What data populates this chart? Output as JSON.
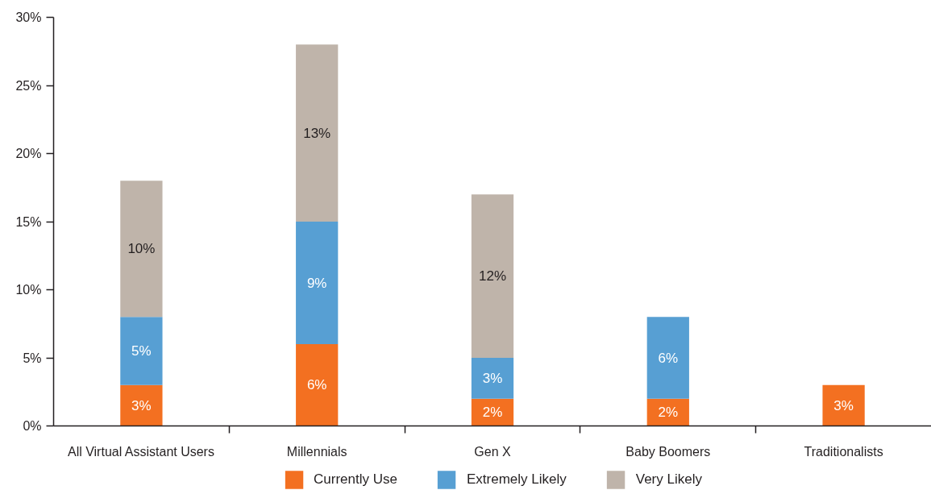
{
  "chart_data": {
    "type": "bar",
    "stacked": true,
    "categories": [
      "All Virtual Assistant Users",
      "Millennials",
      "Gen X",
      "Baby Boomers",
      "Traditionalists"
    ],
    "series": [
      {
        "name": "Currently Use",
        "color": "#f37021",
        "values": [
          3,
          6,
          2,
          2,
          3
        ],
        "value_labels": [
          "3%",
          "6%",
          "2%",
          "2%",
          "3%"
        ]
      },
      {
        "name": "Extremely Likely",
        "color": "#579fd3",
        "values": [
          5,
          9,
          3,
          6,
          null
        ],
        "value_labels": [
          "5%",
          "9%",
          "3%",
          "6%",
          null
        ]
      },
      {
        "name": "Very Likely",
        "color": "#bfb4aa",
        "values": [
          10,
          13,
          12,
          null,
          null
        ],
        "value_labels": [
          "10%",
          "13%",
          "12%",
          null,
          null
        ]
      }
    ],
    "ylim": [
      0,
      30
    ],
    "yticks": [
      {
        "value": 0,
        "label": "0%"
      },
      {
        "value": 5,
        "label": "5%"
      },
      {
        "value": 10,
        "label": "10%"
      },
      {
        "value": 15,
        "label": "15%"
      },
      {
        "value": 20,
        "label": "20%"
      },
      {
        "value": 25,
        "label": "25%"
      },
      {
        "value": 30,
        "label": "30%"
      }
    ],
    "grid": false,
    "legend": "bottom"
  }
}
